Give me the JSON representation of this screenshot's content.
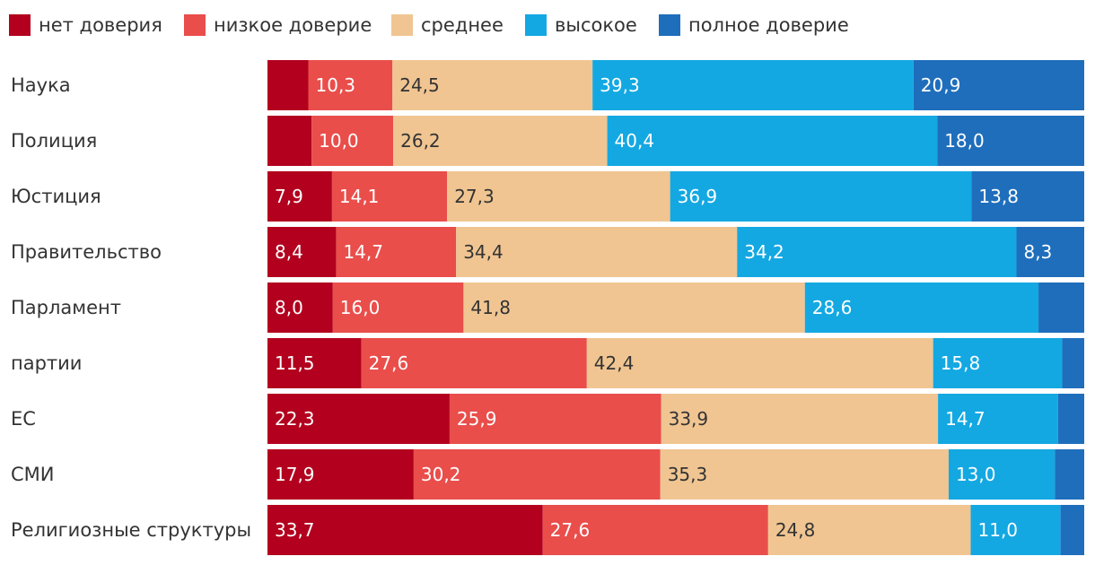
{
  "chart_data": {
    "type": "bar",
    "orientation": "horizontal",
    "stacked": true,
    "title": "",
    "xlabel": "",
    "ylabel": "",
    "xlim": [
      0,
      100
    ],
    "legend_position": "top-left",
    "grid": false,
    "categories": [
      "Наука",
      "Полиция",
      "Юстиция",
      "Правительство",
      "Парламент",
      "партии",
      "ЕС",
      "СМИ",
      "Религиозные структуры"
    ],
    "series": [
      {
        "name": "нет доверия",
        "color": "#b2001e",
        "label_style": "light",
        "values": [
          5.0,
          5.4,
          7.9,
          8.4,
          8.0,
          11.5,
          22.3,
          17.9,
          33.7
        ],
        "labels": [
          "",
          "",
          "7,9",
          "8,4",
          "8,0",
          "11,5",
          "22,3",
          "17,9",
          "33,7"
        ]
      },
      {
        "name": "низкое доверие",
        "color": "#e94e4b",
        "label_style": "light",
        "values": [
          10.3,
          10.0,
          14.1,
          14.7,
          16.0,
          27.6,
          25.9,
          30.2,
          27.6
        ],
        "labels": [
          "10,3",
          "10,0",
          "14,1",
          "14,7",
          "16,0",
          "27,6",
          "25,9",
          "30,2",
          "27,6"
        ]
      },
      {
        "name": "среднее",
        "color": "#f0c592",
        "label_style": "dark",
        "values": [
          24.5,
          26.2,
          27.3,
          34.4,
          41.8,
          42.4,
          33.9,
          35.3,
          24.8
        ],
        "labels": [
          "24,5",
          "26,2",
          "27,3",
          "34,4",
          "41,8",
          "42,4",
          "33,9",
          "35,3",
          "24,8"
        ]
      },
      {
        "name": "высокое",
        "color": "#13a8e2",
        "label_style": "light",
        "values": [
          39.3,
          40.4,
          36.9,
          34.2,
          28.6,
          15.8,
          14.7,
          13.0,
          11.0
        ],
        "labels": [
          "39,3",
          "40,4",
          "36,9",
          "34,2",
          "28,6",
          "15,8",
          "14,7",
          "13,0",
          "11,0"
        ]
      },
      {
        "name": "полное доверие",
        "color": "#1f6ebc",
        "label_style": "light",
        "values": [
          20.9,
          18.0,
          13.8,
          8.3,
          5.6,
          2.7,
          3.2,
          3.6,
          2.9
        ],
        "labels": [
          "20,9",
          "18,0",
          "13,8",
          "8,3",
          "",
          "",
          "",
          "",
          ""
        ]
      }
    ]
  }
}
